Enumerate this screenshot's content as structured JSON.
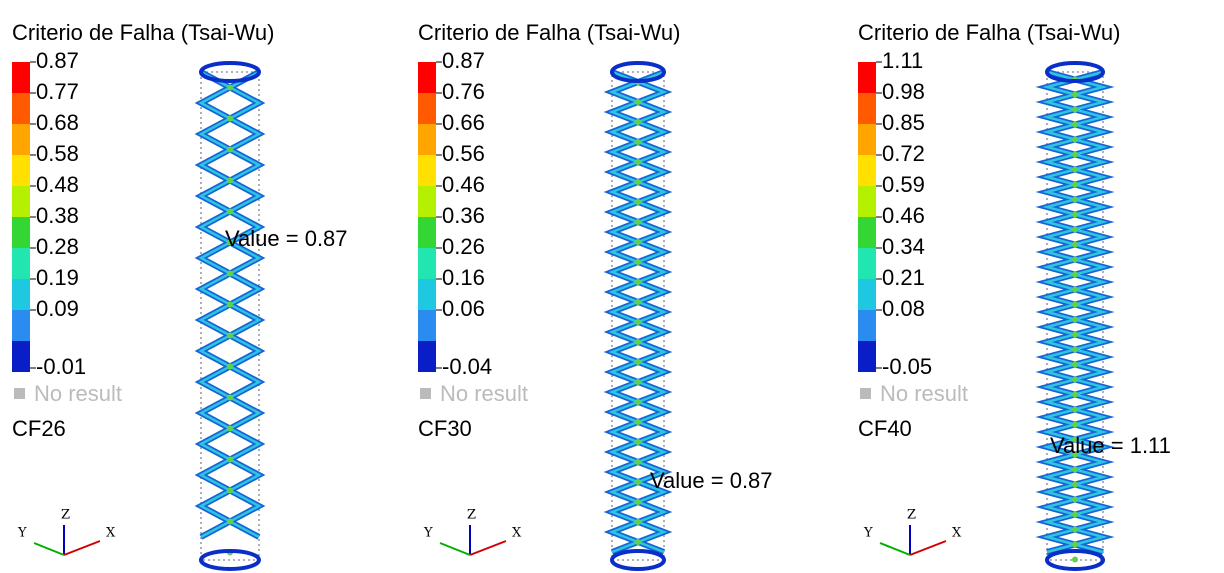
{
  "panels": [
    {
      "title": "Criterio de Falha (Tsai-Wu)",
      "legend": [
        "0.87",
        "0.77",
        "0.68",
        "0.58",
        "0.48",
        "0.38",
        "0.28",
        "0.19",
        "0.09",
        "-0.01"
      ],
      "no_result": "No result",
      "case": "CF26",
      "annotation": "Value = 0.87",
      "axes": {
        "z": "Z",
        "y": "Y",
        "x": "X"
      }
    },
    {
      "title": "Criterio de Falha (Tsai-Wu)",
      "legend": [
        "0.87",
        "0.76",
        "0.66",
        "0.56",
        "0.46",
        "0.36",
        "0.26",
        "0.16",
        "0.06",
        "-0.04"
      ],
      "no_result": "No result",
      "case": "CF30",
      "annotation": "Value = 0.87",
      "axes": {
        "z": "Z",
        "y": "Y",
        "x": "X"
      }
    },
    {
      "title": "Criterio de Falha (Tsai-Wu)",
      "legend": [
        "1.11",
        "0.98",
        "0.85",
        "0.72",
        "0.59",
        "0.46",
        "0.34",
        "0.21",
        "0.08",
        "-0.05"
      ],
      "no_result": "No result",
      "case": "CF40",
      "annotation": "Value = 1.11",
      "axes": {
        "z": "Z",
        "y": "Y",
        "x": "X"
      }
    }
  ]
}
